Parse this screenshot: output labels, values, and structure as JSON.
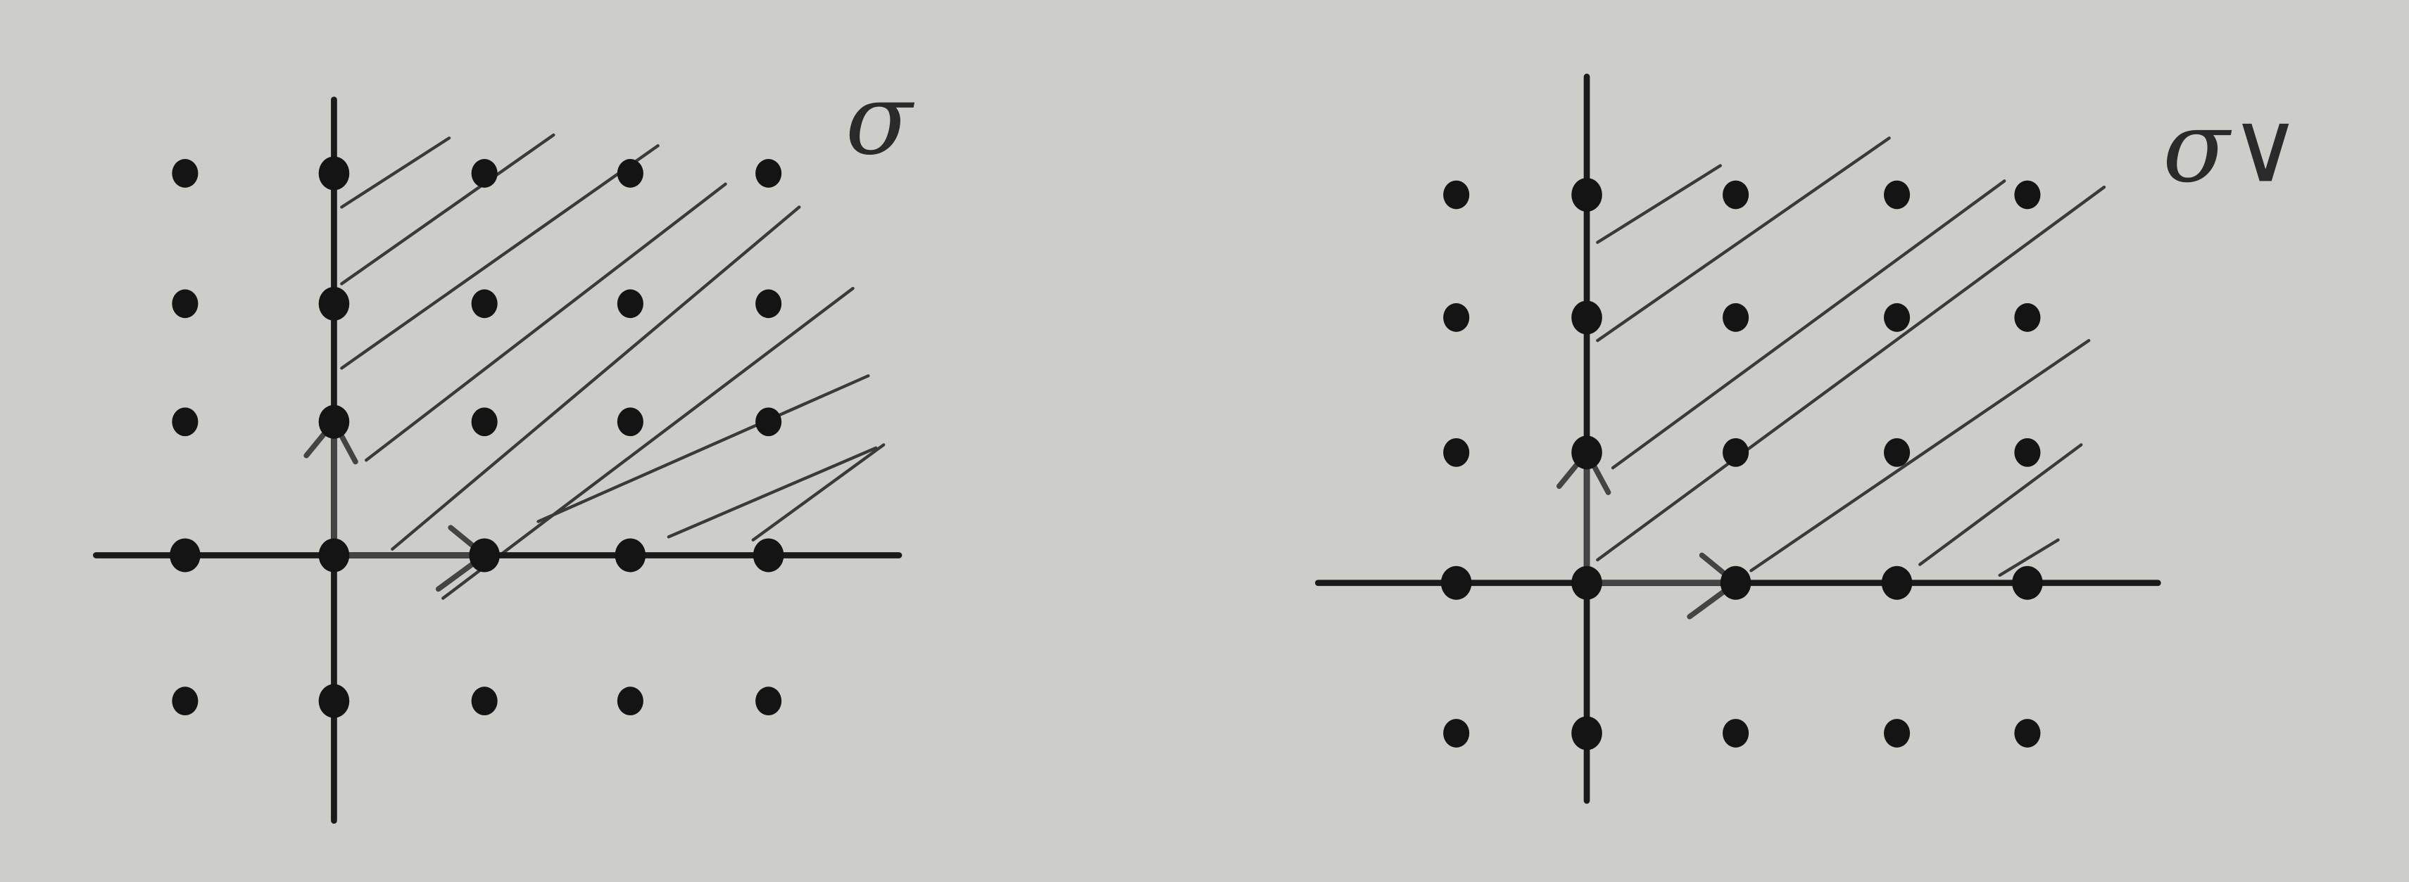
{
  "panels": [
    {
      "label": "σ"
    },
    {
      "label": "σ∨"
    }
  ]
}
